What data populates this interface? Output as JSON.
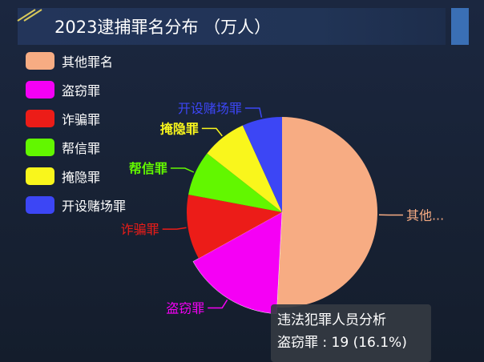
{
  "title": "2023逮捕罪名分布 （万人）",
  "chart_data": {
    "type": "pie",
    "title": "2023逮捕罪名分布 （万人）",
    "legend_position": "top-left",
    "slices": [
      {
        "name": "其他罪名",
        "label": "其他...",
        "value": 60,
        "color": "#f7ac83"
      },
      {
        "name": "盗窃罪",
        "label": "盗窃罪",
        "value": 19,
        "color": "#f500f5",
        "highlight": true
      },
      {
        "name": "诈骗罪",
        "label": "诈骗罪",
        "value": 13,
        "color": "#ec1c18"
      },
      {
        "name": "帮信罪",
        "label": "帮信罪",
        "value": 9,
        "color": "#62f700"
      },
      {
        "name": "掩隐罪",
        "label": "掩隐罪",
        "value": 9,
        "color": "#f9f61c"
      },
      {
        "name": "开设赌场罪",
        "label": "开设赌场罪",
        "value": 8,
        "color": "#3c46f5"
      }
    ]
  },
  "tooltip": {
    "series_name": "违法犯罪人员分析",
    "line": "盗窃罪 : 19 (16.1%)"
  }
}
